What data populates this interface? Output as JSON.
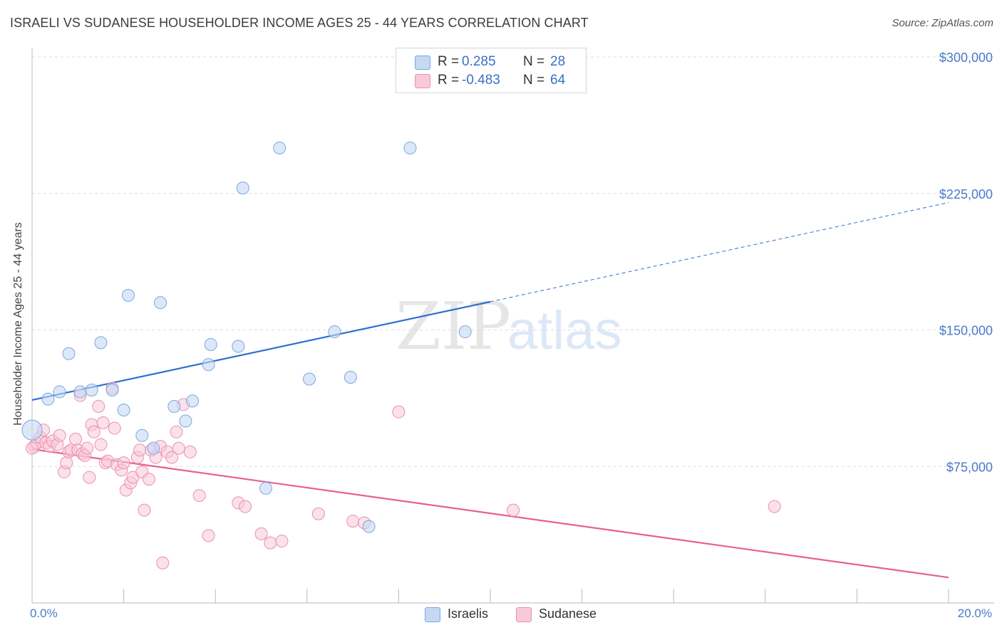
{
  "title": "ISRAELI VS SUDANESE HOUSEHOLDER INCOME AGES 25 - 44 YEARS CORRELATION CHART",
  "source": "Source: ZipAtlas.com",
  "watermark": {
    "zip": "ZIP",
    "atlas": "atlas"
  },
  "colors": {
    "israelis": "#7aa7e0",
    "israelis_fill": "#c5d9f4",
    "israelis_line": "#2f6fd0",
    "sudanese": "#ec8fb0",
    "sudanese_fill": "#f8c9d9",
    "sudanese_line": "#e8608f",
    "tick_text": "#4a7bc8",
    "grid": "#dddddd"
  },
  "stats": [
    {
      "r_label": "R =",
      "r_value": "0.285",
      "n_label": "N =",
      "n_value": "28"
    },
    {
      "r_label": "R =",
      "r_value": "-0.483",
      "n_label": "N =",
      "n_value": "64"
    }
  ],
  "legend": [
    {
      "label": "Israelis"
    },
    {
      "label": "Sudanese"
    }
  ],
  "chart_data": {
    "type": "scatter",
    "title": "ISRAELI VS SUDANESE HOUSEHOLDER INCOME AGES 25 - 44 YEARS CORRELATION CHART",
    "ylabel": "Householder Income Ages 25 - 44 years",
    "xlabel": "",
    "xlim": [
      0,
      20
    ],
    "ylim": [
      0,
      300000
    ],
    "x_unit": "%",
    "x_tick_labels": [
      "0.0%",
      "20.0%"
    ],
    "y_ticks": [
      75000,
      150000,
      225000,
      300000
    ],
    "y_tick_labels": [
      "$75,000",
      "$150,000",
      "$225,000",
      "$300,000"
    ],
    "grid": true,
    "legend_position": "bottom-center",
    "series": [
      {
        "name": "Israelis",
        "points": [
          [
            0.0,
            95000
          ],
          [
            0.35,
            112000
          ],
          [
            0.6,
            116000
          ],
          [
            0.8,
            137000
          ],
          [
            1.05,
            116000
          ],
          [
            1.3,
            117000
          ],
          [
            1.5,
            143000
          ],
          [
            1.75,
            117000
          ],
          [
            2.0,
            106000
          ],
          [
            2.1,
            169000
          ],
          [
            2.4,
            92000
          ],
          [
            2.65,
            85000
          ],
          [
            2.8,
            165000
          ],
          [
            3.1,
            108000
          ],
          [
            3.35,
            100000
          ],
          [
            3.5,
            111000
          ],
          [
            3.85,
            131000
          ],
          [
            3.9,
            142000
          ],
          [
            4.5,
            141000
          ],
          [
            4.6,
            228000
          ],
          [
            5.1,
            63000
          ],
          [
            5.4,
            250000
          ],
          [
            6.05,
            123000
          ],
          [
            6.6,
            149000
          ],
          [
            6.95,
            124000
          ],
          [
            7.35,
            42000
          ],
          [
            8.25,
            250000
          ],
          [
            9.45,
            149000
          ]
        ],
        "trend": {
          "x0": 0,
          "y0": 111500,
          "x1": 10,
          "y1": 165500,
          "dashed_to_x": 20,
          "dashed_to_y": 220000
        }
      },
      {
        "name": "Sudanese",
        "points": [
          [
            0.05,
            86000
          ],
          [
            0.1,
            88000
          ],
          [
            0.18,
            91000
          ],
          [
            0.25,
            95000
          ],
          [
            0.3,
            88000
          ],
          [
            0.38,
            86000
          ],
          [
            0.45,
            89000
          ],
          [
            0.55,
            87000
          ],
          [
            0.6,
            92000
          ],
          [
            0.7,
            72000
          ],
          [
            0.75,
            77000
          ],
          [
            0.8,
            83000
          ],
          [
            0.85,
            84000
          ],
          [
            0.95,
            90000
          ],
          [
            1.0,
            84000
          ],
          [
            1.05,
            114000
          ],
          [
            1.1,
            82000
          ],
          [
            1.15,
            81000
          ],
          [
            1.2,
            85000
          ],
          [
            1.25,
            69000
          ],
          [
            1.3,
            98000
          ],
          [
            1.35,
            94000
          ],
          [
            1.45,
            108000
          ],
          [
            1.5,
            87000
          ],
          [
            1.55,
            99000
          ],
          [
            1.6,
            77000
          ],
          [
            1.65,
            78000
          ],
          [
            1.75,
            118000
          ],
          [
            1.8,
            96000
          ],
          [
            1.85,
            76000
          ],
          [
            1.95,
            73000
          ],
          [
            2.0,
            77000
          ],
          [
            2.05,
            62000
          ],
          [
            2.15,
            66000
          ],
          [
            2.2,
            69000
          ],
          [
            2.3,
            80000
          ],
          [
            2.35,
            84000
          ],
          [
            2.4,
            72000
          ],
          [
            2.45,
            51000
          ],
          [
            2.55,
            68000
          ],
          [
            2.6,
            84000
          ],
          [
            2.7,
            80000
          ],
          [
            2.8,
            86000
          ],
          [
            2.85,
            22000
          ],
          [
            2.95,
            83000
          ],
          [
            3.05,
            80000
          ],
          [
            3.15,
            94000
          ],
          [
            3.2,
            85000
          ],
          [
            3.3,
            109000
          ],
          [
            3.45,
            83000
          ],
          [
            3.65,
            59000
          ],
          [
            3.85,
            37000
          ],
          [
            4.5,
            55000
          ],
          [
            4.65,
            53000
          ],
          [
            5.0,
            38000
          ],
          [
            5.2,
            33000
          ],
          [
            5.45,
            34000
          ],
          [
            6.25,
            49000
          ],
          [
            7.0,
            45000
          ],
          [
            7.25,
            44000
          ],
          [
            8.0,
            105000
          ],
          [
            10.5,
            51000
          ],
          [
            16.2,
            53000
          ],
          [
            0.0,
            85000
          ]
        ],
        "trend": {
          "x0": 0,
          "y0": 84500,
          "x1": 20,
          "y1": 14000
        }
      }
    ]
  }
}
